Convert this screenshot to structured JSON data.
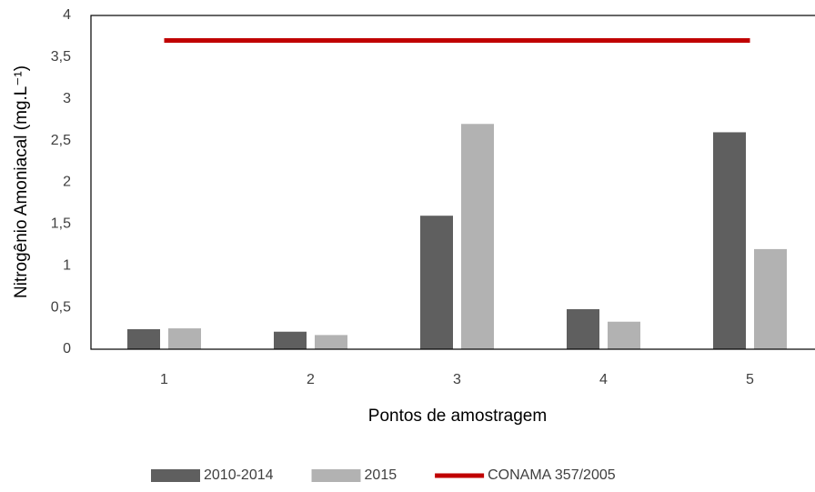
{
  "chart_data": {
    "type": "bar",
    "categories": [
      "1",
      "2",
      "3",
      "4",
      "5"
    ],
    "series": [
      {
        "name": "2010-2014",
        "color": "#5f5f5f",
        "values": [
          0.24,
          0.21,
          1.6,
          0.48,
          2.6
        ]
      },
      {
        "name": "2015",
        "color": "#b2b2b2",
        "values": [
          0.25,
          0.17,
          2.7,
          0.33,
          1.2
        ]
      },
      {
        "name": "CONAMA 357/2005",
        "color": "#c00000",
        "type": "line",
        "values": [
          3.7,
          3.7,
          3.7,
          3.7,
          3.7
        ]
      }
    ],
    "x_label": "Pontos de amostragem",
    "y_label": "Nitrogênio Amoniacal (mg.L⁻¹)",
    "ylim": [
      0,
      4
    ],
    "yticks": [
      0,
      {
        "value": 0.5,
        "label": "0,5"
      },
      1,
      {
        "value": 1.5,
        "label": "1,5"
      },
      2,
      {
        "value": 2.5,
        "label": "2,5"
      },
      3,
      {
        "value": 3.5,
        "label": "3,5"
      },
      4
    ],
    "grid": false,
    "legend": "bottom"
  }
}
